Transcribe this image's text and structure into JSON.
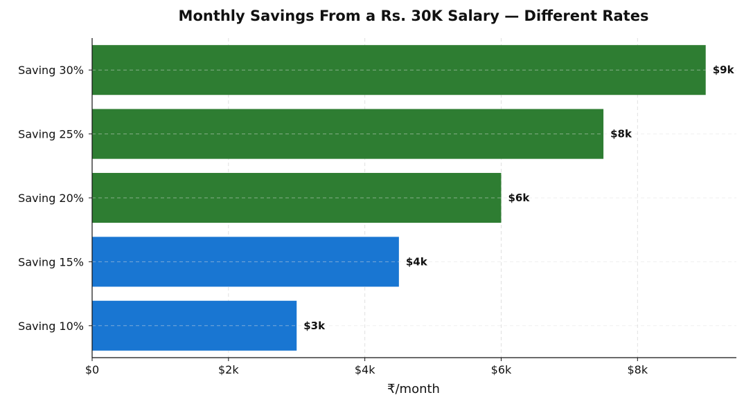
{
  "chart_data": {
    "type": "bar",
    "orientation": "horizontal",
    "title": "Monthly Savings From a Rs. 30K Salary — Different Rates",
    "xlabel": "₹/month",
    "ylabel": "",
    "categories": [
      "Saving 10%",
      "Saving 15%",
      "Saving 20%",
      "Saving 25%",
      "Saving 30%"
    ],
    "values": [
      3000,
      4500,
      6000,
      7500,
      9000
    ],
    "data_labels": [
      "$3k",
      "$4k",
      "$6k",
      "$8k",
      "$9k"
    ],
    "bar_colors": [
      "#1976d2",
      "#1976d2",
      "#2e7d32",
      "#2e7d32",
      "#2e7d32"
    ],
    "xlim": [
      0,
      9450
    ],
    "xticks": [
      0,
      2000,
      4000,
      6000,
      8000
    ],
    "xtick_labels": [
      "$0",
      "$2k",
      "$4k",
      "$6k",
      "$8k"
    ],
    "grid": true,
    "colors": {
      "high_rate": "#2e7d32",
      "low_rate": "#1976d2",
      "grid": "#e0e0e0",
      "axis": "#111111"
    }
  }
}
